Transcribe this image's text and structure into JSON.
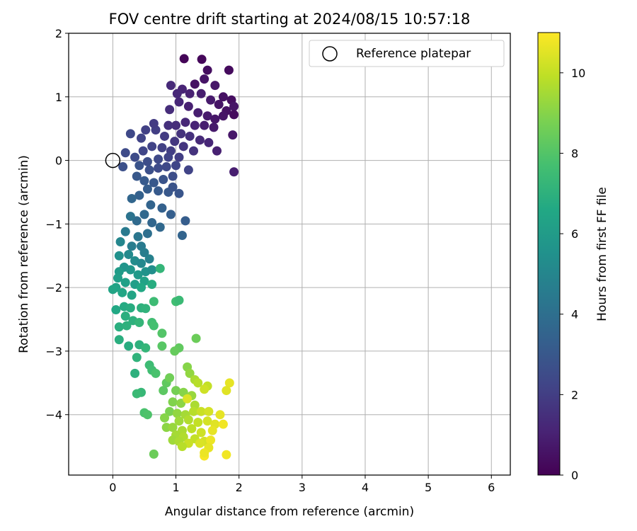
{
  "chart_data": {
    "type": "scatter",
    "title": "FOV centre drift starting at 2024/08/15 10:57:18",
    "xlabel": "Angular distance from reference (arcmin)",
    "ylabel": "Rotation from reference (arcmin)",
    "xlim": [
      -0.7,
      6.3
    ],
    "ylim": [
      -4.95,
      2.0
    ],
    "xticks": [
      0,
      1,
      2,
      3,
      4,
      5,
      6
    ],
    "yticks": [
      -4,
      -3,
      -2,
      -1,
      0,
      1,
      2
    ],
    "xtick_labels": [
      "0",
      "1",
      "2",
      "3",
      "4",
      "5",
      "6"
    ],
    "ytick_labels": [
      "−4",
      "−3",
      "−2",
      "−1",
      "0",
      "1",
      "2"
    ],
    "grid": true,
    "legend": {
      "position": "top-right",
      "entries": [
        "Reference platepar"
      ]
    },
    "reference_point": {
      "x": 0,
      "y": 0,
      "label": "Reference platepar"
    },
    "colorbar": {
      "label": "Hours from first FF file",
      "colormap": "viridis",
      "range": [
        0,
        11
      ],
      "ticks": [
        0,
        2,
        4,
        6,
        8,
        10
      ],
      "tick_labels": [
        "0",
        "2",
        "4",
        "6",
        "8",
        "10"
      ]
    },
    "points": [
      {
        "x": 1.13,
        "y": 1.6,
        "h": 0.1
      },
      {
        "x": 1.41,
        "y": 1.59,
        "h": 0.2
      },
      {
        "x": 1.84,
        "y": 1.42,
        "h": 0.3
      },
      {
        "x": 1.5,
        "y": 1.42,
        "h": 0.4
      },
      {
        "x": 1.3,
        "y": 1.2,
        "h": 0.5
      },
      {
        "x": 1.45,
        "y": 1.28,
        "h": 0.6
      },
      {
        "x": 1.62,
        "y": 1.18,
        "h": 0.7
      },
      {
        "x": 1.75,
        "y": 1.0,
        "h": 0.5
      },
      {
        "x": 1.88,
        "y": 0.95,
        "h": 0.4
      },
      {
        "x": 1.92,
        "y": 0.85,
        "h": 0.6
      },
      {
        "x": 1.92,
        "y": 0.72,
        "h": 0.3
      },
      {
        "x": 1.8,
        "y": 0.78,
        "h": 0.5
      },
      {
        "x": 1.68,
        "y": 0.88,
        "h": 0.6
      },
      {
        "x": 1.55,
        "y": 0.95,
        "h": 0.8
      },
      {
        "x": 1.4,
        "y": 1.05,
        "h": 0.9
      },
      {
        "x": 1.22,
        "y": 1.05,
        "h": 1.0
      },
      {
        "x": 1.1,
        "y": 1.12,
        "h": 1.1
      },
      {
        "x": 1.02,
        "y": 1.05,
        "h": 1.2
      },
      {
        "x": 0.92,
        "y": 1.18,
        "h": 1.3
      },
      {
        "x": 0.9,
        "y": 0.8,
        "h": 1.4
      },
      {
        "x": 1.05,
        "y": 0.92,
        "h": 1.2
      },
      {
        "x": 1.2,
        "y": 0.85,
        "h": 1.0
      },
      {
        "x": 1.35,
        "y": 0.75,
        "h": 0.9
      },
      {
        "x": 1.5,
        "y": 0.7,
        "h": 0.8
      },
      {
        "x": 1.62,
        "y": 0.65,
        "h": 0.7
      },
      {
        "x": 1.75,
        "y": 0.7,
        "h": 0.6
      },
      {
        "x": 1.6,
        "y": 0.52,
        "h": 0.8
      },
      {
        "x": 1.45,
        "y": 0.55,
        "h": 0.9
      },
      {
        "x": 1.3,
        "y": 0.55,
        "h": 1.1
      },
      {
        "x": 1.15,
        "y": 0.6,
        "h": 1.2
      },
      {
        "x": 1.0,
        "y": 0.55,
        "h": 1.4
      },
      {
        "x": 0.88,
        "y": 0.55,
        "h": 1.5
      },
      {
        "x": 1.08,
        "y": 0.42,
        "h": 1.6
      },
      {
        "x": 1.22,
        "y": 0.38,
        "h": 1.5
      },
      {
        "x": 1.38,
        "y": 0.32,
        "h": 1.3
      },
      {
        "x": 1.52,
        "y": 0.28,
        "h": 1.2
      },
      {
        "x": 1.65,
        "y": 0.15,
        "h": 1.0
      },
      {
        "x": 1.9,
        "y": 0.4,
        "h": 0.7
      },
      {
        "x": 1.92,
        "y": -0.18,
        "h": 0.9
      },
      {
        "x": 1.28,
        "y": 0.15,
        "h": 1.6
      },
      {
        "x": 1.12,
        "y": 0.22,
        "h": 1.7
      },
      {
        "x": 0.98,
        "y": 0.3,
        "h": 1.8
      },
      {
        "x": 0.82,
        "y": 0.38,
        "h": 1.9
      },
      {
        "x": 0.68,
        "y": 0.48,
        "h": 2.0
      },
      {
        "x": 0.65,
        "y": 0.58,
        "h": 1.9
      },
      {
        "x": 0.52,
        "y": 0.48,
        "h": 2.1
      },
      {
        "x": 0.45,
        "y": 0.35,
        "h": 2.2
      },
      {
        "x": 0.28,
        "y": 0.42,
        "h": 2.4
      },
      {
        "x": 0.2,
        "y": 0.12,
        "h": 2.5
      },
      {
        "x": 0.16,
        "y": -0.1,
        "h": 2.7
      },
      {
        "x": 0.35,
        "y": 0.05,
        "h": 2.5
      },
      {
        "x": 0.48,
        "y": 0.15,
        "h": 2.3
      },
      {
        "x": 0.62,
        "y": 0.22,
        "h": 2.2
      },
      {
        "x": 0.78,
        "y": 0.2,
        "h": 2.1
      },
      {
        "x": 0.92,
        "y": 0.15,
        "h": 2.0
      },
      {
        "x": 1.05,
        "y": 0.05,
        "h": 2.0
      },
      {
        "x": 0.88,
        "y": 0.05,
        "h": 2.2
      },
      {
        "x": 0.72,
        "y": 0.02,
        "h": 2.4
      },
      {
        "x": 0.55,
        "y": -0.02,
        "h": 2.6
      },
      {
        "x": 0.42,
        "y": -0.08,
        "h": 2.8
      },
      {
        "x": 0.58,
        "y": -0.15,
        "h": 2.7
      },
      {
        "x": 0.72,
        "y": -0.12,
        "h": 2.5
      },
      {
        "x": 0.85,
        "y": -0.1,
        "h": 2.4
      },
      {
        "x": 1.0,
        "y": -0.08,
        "h": 2.3
      },
      {
        "x": 1.2,
        "y": -0.15,
        "h": 2.2
      },
      {
        "x": 0.95,
        "y": -0.25,
        "h": 2.6
      },
      {
        "x": 0.8,
        "y": -0.3,
        "h": 2.8
      },
      {
        "x": 0.65,
        "y": -0.35,
        "h": 3.0
      },
      {
        "x": 0.5,
        "y": -0.32,
        "h": 3.1
      },
      {
        "x": 0.38,
        "y": -0.25,
        "h": 3.0
      },
      {
        "x": 0.55,
        "y": -0.45,
        "h": 3.2
      },
      {
        "x": 0.72,
        "y": -0.48,
        "h": 3.1
      },
      {
        "x": 0.88,
        "y": -0.5,
        "h": 3.0
      },
      {
        "x": 1.05,
        "y": -0.52,
        "h": 2.9
      },
      {
        "x": 0.95,
        "y": -0.42,
        "h": 2.8
      },
      {
        "x": 0.42,
        "y": -0.55,
        "h": 3.4
      },
      {
        "x": 0.3,
        "y": -0.6,
        "h": 3.6
      },
      {
        "x": 0.6,
        "y": -0.7,
        "h": 3.5
      },
      {
        "x": 0.78,
        "y": -0.75,
        "h": 3.4
      },
      {
        "x": 0.92,
        "y": -0.85,
        "h": 3.3
      },
      {
        "x": 1.15,
        "y": -0.95,
        "h": 3.2
      },
      {
        "x": 0.5,
        "y": -0.85,
        "h": 3.7
      },
      {
        "x": 0.38,
        "y": -0.95,
        "h": 3.8
      },
      {
        "x": 0.62,
        "y": -0.98,
        "h": 3.6
      },
      {
        "x": 0.75,
        "y": -1.05,
        "h": 3.7
      },
      {
        "x": 0.55,
        "y": -1.15,
        "h": 4.0
      },
      {
        "x": 1.1,
        "y": -1.18,
        "h": 3.5
      },
      {
        "x": 0.28,
        "y": -0.88,
        "h": 4.2
      },
      {
        "x": 0.2,
        "y": -1.12,
        "h": 4.5
      },
      {
        "x": 0.4,
        "y": -1.2,
        "h": 4.3
      },
      {
        "x": 0.3,
        "y": -1.35,
        "h": 4.6
      },
      {
        "x": 0.45,
        "y": -1.35,
        "h": 4.5
      },
      {
        "x": 0.5,
        "y": -1.45,
        "h": 4.6
      },
      {
        "x": 0.12,
        "y": -1.28,
        "h": 5.0
      },
      {
        "x": 0.25,
        "y": -1.48,
        "h": 5.2
      },
      {
        "x": 0.35,
        "y": -1.58,
        "h": 5.3
      },
      {
        "x": 0.45,
        "y": -1.62,
        "h": 5.1
      },
      {
        "x": 0.58,
        "y": -1.55,
        "h": 4.8
      },
      {
        "x": 0.1,
        "y": -1.5,
        "h": 5.5
      },
      {
        "x": 0.18,
        "y": -1.68,
        "h": 5.7
      },
      {
        "x": 0.28,
        "y": -1.72,
        "h": 5.8
      },
      {
        "x": 0.4,
        "y": -1.8,
        "h": 5.9
      },
      {
        "x": 0.52,
        "y": -1.75,
        "h": 5.6
      },
      {
        "x": 0.62,
        "y": -1.72,
        "h": 5.4
      },
      {
        "x": 0.1,
        "y": -1.75,
        "h": 6.0
      },
      {
        "x": 0.08,
        "y": -1.85,
        "h": 6.1
      },
      {
        "x": 0.2,
        "y": -1.92,
        "h": 6.2
      },
      {
        "x": 0.35,
        "y": -1.95,
        "h": 6.1
      },
      {
        "x": 0.5,
        "y": -1.9,
        "h": 6.3
      },
      {
        "x": 0.05,
        "y": -2.0,
        "h": 6.3
      },
      {
        "x": 0.0,
        "y": -2.03,
        "h": 6.4
      },
      {
        "x": 0.15,
        "y": -2.08,
        "h": 6.5
      },
      {
        "x": 0.3,
        "y": -2.12,
        "h": 6.4
      },
      {
        "x": 0.45,
        "y": -2.0,
        "h": 6.6
      },
      {
        "x": 0.75,
        "y": -1.7,
        "h": 7.2
      },
      {
        "x": 0.62,
        "y": -1.95,
        "h": 6.8
      },
      {
        "x": 0.05,
        "y": -2.35,
        "h": 6.6
      },
      {
        "x": 0.18,
        "y": -2.3,
        "h": 6.7
      },
      {
        "x": 0.28,
        "y": -2.32,
        "h": 6.8
      },
      {
        "x": 0.45,
        "y": -2.32,
        "h": 7.0
      },
      {
        "x": 0.52,
        "y": -2.33,
        "h": 7.1
      },
      {
        "x": 0.2,
        "y": -2.45,
        "h": 6.9
      },
      {
        "x": 0.32,
        "y": -2.52,
        "h": 7.0
      },
      {
        "x": 0.1,
        "y": -2.62,
        "h": 6.9
      },
      {
        "x": 0.22,
        "y": -2.6,
        "h": 7.0
      },
      {
        "x": 0.42,
        "y": -2.55,
        "h": 7.2
      },
      {
        "x": 0.62,
        "y": -2.55,
        "h": 7.6
      },
      {
        "x": 0.65,
        "y": -2.6,
        "h": 7.7
      },
      {
        "x": 1.0,
        "y": -2.22,
        "h": 7.6
      },
      {
        "x": 1.05,
        "y": -2.2,
        "h": 7.4
      },
      {
        "x": 0.65,
        "y": -2.22,
        "h": 7.5
      },
      {
        "x": 0.1,
        "y": -2.82,
        "h": 6.9
      },
      {
        "x": 0.25,
        "y": -2.92,
        "h": 6.8
      },
      {
        "x": 0.42,
        "y": -2.9,
        "h": 7.0
      },
      {
        "x": 0.52,
        "y": -2.95,
        "h": 7.2
      },
      {
        "x": 0.78,
        "y": -2.72,
        "h": 8.0
      },
      {
        "x": 0.78,
        "y": -2.92,
        "h": 8.1
      },
      {
        "x": 1.05,
        "y": -2.95,
        "h": 8.3
      },
      {
        "x": 0.98,
        "y": -3.0,
        "h": 8.4
      },
      {
        "x": 1.32,
        "y": -2.8,
        "h": 8.5
      },
      {
        "x": 0.38,
        "y": -3.1,
        "h": 7.1
      },
      {
        "x": 0.58,
        "y": -3.22,
        "h": 7.5
      },
      {
        "x": 0.62,
        "y": -3.3,
        "h": 7.6
      },
      {
        "x": 0.68,
        "y": -3.35,
        "h": 7.8
      },
      {
        "x": 0.35,
        "y": -3.35,
        "h": 7.0
      },
      {
        "x": 0.85,
        "y": -3.5,
        "h": 8.3
      },
      {
        "x": 0.9,
        "y": -3.42,
        "h": 8.6
      },
      {
        "x": 1.18,
        "y": -3.25,
        "h": 9.0
      },
      {
        "x": 1.22,
        "y": -3.35,
        "h": 9.2
      },
      {
        "x": 1.3,
        "y": -3.45,
        "h": 9.6
      },
      {
        "x": 1.35,
        "y": -3.5,
        "h": 9.8
      },
      {
        "x": 1.5,
        "y": -3.55,
        "h": 10.0
      },
      {
        "x": 1.85,
        "y": -3.5,
        "h": 10.6
      },
      {
        "x": 0.8,
        "y": -3.62,
        "h": 8.2
      },
      {
        "x": 0.45,
        "y": -3.65,
        "h": 7.3
      },
      {
        "x": 0.38,
        "y": -3.67,
        "h": 7.4
      },
      {
        "x": 1.0,
        "y": -3.62,
        "h": 8.7
      },
      {
        "x": 1.12,
        "y": -3.65,
        "h": 9.0
      },
      {
        "x": 1.25,
        "y": -3.7,
        "h": 9.3
      },
      {
        "x": 1.45,
        "y": -3.6,
        "h": 10.2
      },
      {
        "x": 1.8,
        "y": -3.62,
        "h": 10.5
      },
      {
        "x": 0.95,
        "y": -3.8,
        "h": 8.9
      },
      {
        "x": 1.08,
        "y": -3.82,
        "h": 9.1
      },
      {
        "x": 1.18,
        "y": -3.75,
        "h": 10.4
      },
      {
        "x": 1.3,
        "y": -3.85,
        "h": 9.6
      },
      {
        "x": 0.9,
        "y": -3.95,
        "h": 8.8
      },
      {
        "x": 1.02,
        "y": -3.98,
        "h": 9.2
      },
      {
        "x": 1.15,
        "y": -4.0,
        "h": 9.5
      },
      {
        "x": 1.28,
        "y": -3.95,
        "h": 9.8
      },
      {
        "x": 1.4,
        "y": -3.95,
        "h": 10.1
      },
      {
        "x": 1.52,
        "y": -3.95,
        "h": 10.3
      },
      {
        "x": 1.7,
        "y": -4.0,
        "h": 10.6
      },
      {
        "x": 0.5,
        "y": -3.97,
        "h": 7.8
      },
      {
        "x": 0.55,
        "y": -4.0,
        "h": 7.9
      },
      {
        "x": 0.82,
        "y": -4.05,
        "h": 9.0
      },
      {
        "x": 1.05,
        "y": -4.1,
        "h": 9.4
      },
      {
        "x": 1.2,
        "y": -4.08,
        "h": 9.7
      },
      {
        "x": 1.35,
        "y": -4.12,
        "h": 10.0
      },
      {
        "x": 1.5,
        "y": -4.1,
        "h": 10.3
      },
      {
        "x": 1.62,
        "y": -4.15,
        "h": 10.5
      },
      {
        "x": 1.75,
        "y": -4.15,
        "h": 10.8
      },
      {
        "x": 0.85,
        "y": -4.2,
        "h": 9.1
      },
      {
        "x": 0.95,
        "y": -4.2,
        "h": 9.3
      },
      {
        "x": 1.1,
        "y": -4.25,
        "h": 9.6
      },
      {
        "x": 1.25,
        "y": -4.22,
        "h": 9.9
      },
      {
        "x": 1.4,
        "y": -4.28,
        "h": 10.2
      },
      {
        "x": 1.58,
        "y": -4.25,
        "h": 10.6
      },
      {
        "x": 1.0,
        "y": -4.32,
        "h": 9.5
      },
      {
        "x": 1.12,
        "y": -4.35,
        "h": 9.7
      },
      {
        "x": 1.3,
        "y": -4.38,
        "h": 10.0
      },
      {
        "x": 1.45,
        "y": -4.42,
        "h": 10.3
      },
      {
        "x": 1.55,
        "y": -4.4,
        "h": 10.7
      },
      {
        "x": 0.95,
        "y": -4.4,
        "h": 9.4
      },
      {
        "x": 1.05,
        "y": -4.42,
        "h": 9.6
      },
      {
        "x": 1.2,
        "y": -4.45,
        "h": 10.1
      },
      {
        "x": 1.38,
        "y": -4.45,
        "h": 10.4
      },
      {
        "x": 1.52,
        "y": -4.52,
        "h": 10.6
      },
      {
        "x": 1.1,
        "y": -4.5,
        "h": 9.8
      },
      {
        "x": 0.65,
        "y": -4.62,
        "h": 8.5
      },
      {
        "x": 1.45,
        "y": -4.65,
        "h": 10.9
      },
      {
        "x": 1.8,
        "y": -4.63,
        "h": 10.8
      },
      {
        "x": 1.45,
        "y": -4.6,
        "h": 10.7
      }
    ]
  }
}
